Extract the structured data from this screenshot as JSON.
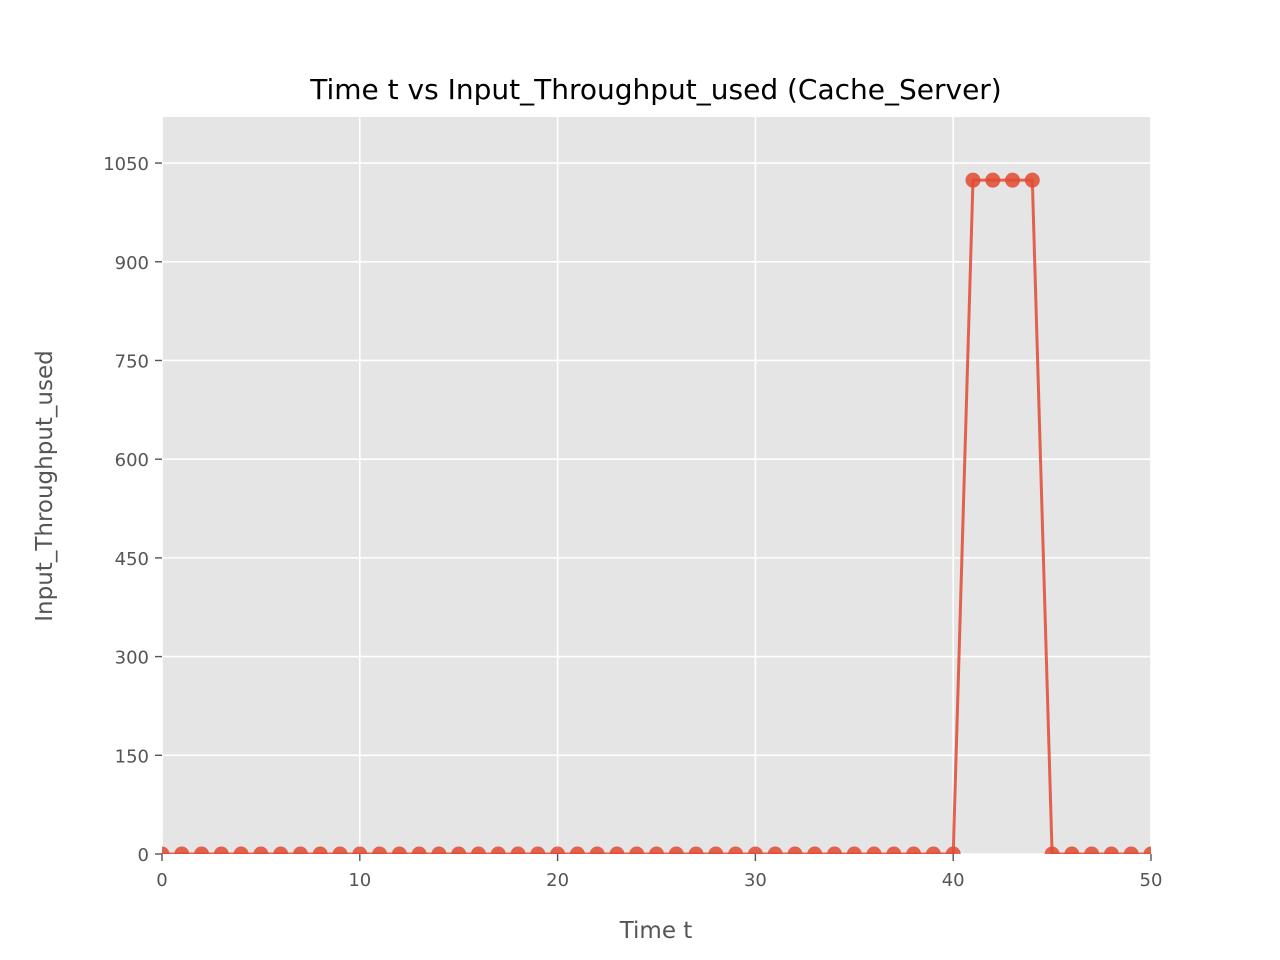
{
  "chart_data": {
    "type": "line",
    "title": "Time t vs Input_Throughput_used (Cache_Server)",
    "xlabel": "Time t",
    "ylabel": "Input_Throughput_used",
    "xlim": [
      0,
      50
    ],
    "ylim": [
      0,
      1120
    ],
    "xticks": [
      0,
      10,
      20,
      30,
      40,
      50
    ],
    "yticks": [
      0,
      150,
      300,
      450,
      600,
      750,
      900,
      1050
    ],
    "grid": true,
    "legend": "none",
    "series": [
      {
        "color": "#E24A33",
        "marker": "circle",
        "x": [
          0,
          1,
          2,
          3,
          4,
          5,
          6,
          7,
          8,
          9,
          10,
          11,
          12,
          13,
          14,
          15,
          16,
          17,
          18,
          19,
          20,
          21,
          22,
          23,
          24,
          25,
          26,
          27,
          28,
          29,
          30,
          31,
          32,
          33,
          34,
          35,
          36,
          37,
          38,
          39,
          40,
          41,
          42,
          43,
          44,
          45,
          46,
          47,
          48,
          49,
          50
        ],
        "y": [
          0,
          0,
          0,
          0,
          0,
          0,
          0,
          0,
          0,
          0,
          0,
          0,
          0,
          0,
          0,
          0,
          0,
          0,
          0,
          0,
          0,
          0,
          0,
          0,
          0,
          0,
          0,
          0,
          0,
          0,
          0,
          0,
          0,
          0,
          0,
          0,
          0,
          0,
          0,
          0,
          0,
          1024,
          1024,
          1024,
          1024,
          0,
          0,
          0,
          0,
          0,
          0
        ]
      }
    ]
  },
  "colors": {
    "plot_background": "#E5E5E5",
    "grid": "#FFFFFF",
    "series": "#E24A33",
    "tick_text": "#555555",
    "title_text": "#000000"
  }
}
